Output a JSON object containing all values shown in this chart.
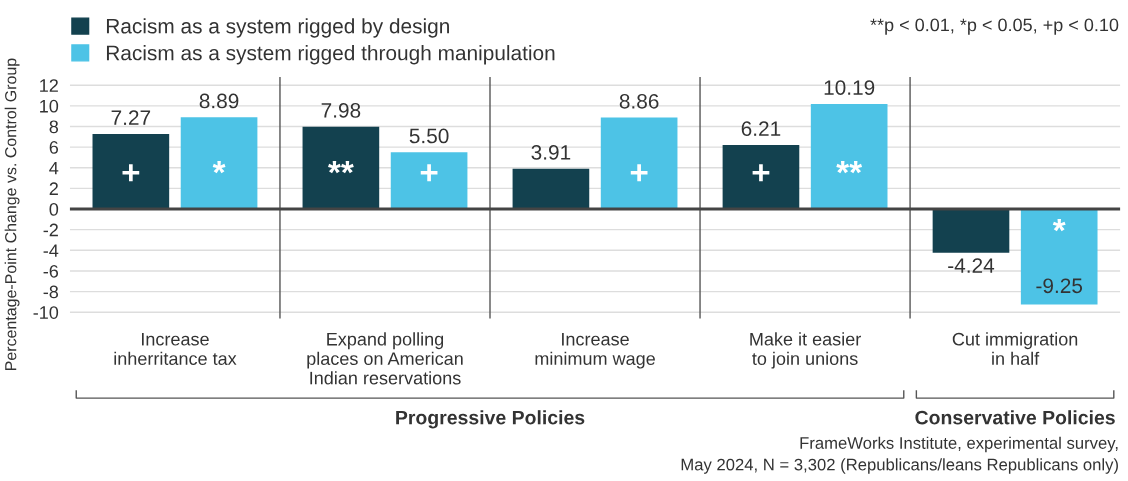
{
  "chart_data": {
    "type": "bar",
    "ylabel": "Percentage-Point Change vs. Control Group",
    "categories": [
      "Increase\ninherritance tax",
      "Expand polling\nplaces on American\nIndian reservations",
      "Increase\nminimum wage",
      "Make it easier\nto join unions",
      "Cut immigration\nin half"
    ],
    "series": [
      {
        "name": "Racism as a system rigged by design",
        "color": "#13414f",
        "values": [
          7.27,
          7.98,
          3.91,
          6.21,
          -4.24
        ],
        "value_labels": [
          "7.27",
          "7.98",
          "3.91",
          "6.21",
          "-4.24"
        ]
      },
      {
        "name": "Racism as a system rigged through manipulation",
        "color": "#4dc3e6",
        "values": [
          8.89,
          5.5,
          8.86,
          10.19,
          -9.25
        ],
        "value_labels": [
          "8.89",
          "5.50",
          "8.86",
          "10.19",
          "-9.25"
        ]
      }
    ],
    "ylim": [
      -10.6,
      12.8
    ],
    "yticks": [
      12,
      10,
      8,
      6,
      4,
      2,
      0,
      -2,
      -4,
      -6,
      -8,
      -10
    ],
    "grid": "y",
    "legend": "top left",
    "annotations": [
      "+",
      "*",
      "**",
      "+",
      "+",
      "+",
      "**",
      "*",
      "Progressive Policies",
      "Conservative Policies",
      "**p < 0.01, *p < 0.05, +p < 0.10",
      "FrameWorks Institute, experimental survey,\nMay 2024, N = 3,302 (Republicans/leans Republicans only)"
    ]
  }
}
